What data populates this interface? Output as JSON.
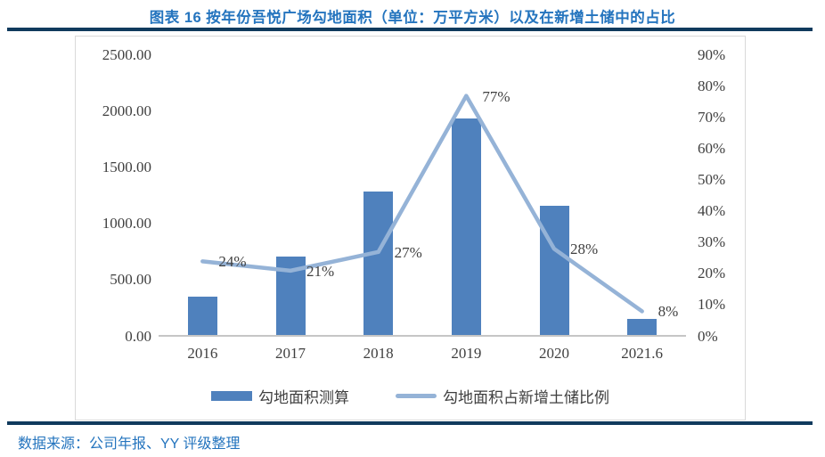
{
  "header": {
    "title": "图表 16 按年份吾悦广场勾地面积（单位：万平方米）以及在新增土储中的占比"
  },
  "footer": {
    "source": "数据来源：公司年报、YY 评级整理"
  },
  "colors": {
    "bar": "#4F81BD",
    "line": "#95B3D7",
    "title_blue": "#2474BE",
    "navy_rule": "#103A5D",
    "axis_text": "#3F3F3F",
    "axis_line": "#C6C6C6",
    "frame_border": "#D9D9D9"
  },
  "chart_data": {
    "type": "bar",
    "subtype": "combo-bar-line",
    "title": "图表 16 按年份吾悦广场勾地面积（单位：万平方米）以及在新增土储中的占比",
    "categories": [
      "2016",
      "2017",
      "2018",
      "2019",
      "2020",
      "2021.6"
    ],
    "series": [
      {
        "name": "勾地面积测算",
        "type": "bar",
        "axis": "left",
        "values": [
          350,
          710,
          1290,
          1940,
          1160,
          155
        ]
      },
      {
        "name": "勾地面积占新增土储比例",
        "type": "line",
        "axis": "right",
        "values": [
          24,
          21,
          27,
          77,
          28,
          8
        ],
        "point_labels": [
          "24%",
          "21%",
          "27%",
          "77%",
          "28%",
          "8%"
        ]
      }
    ],
    "left_axis": {
      "min": 0,
      "max": 2500,
      "ticks": [
        "2500.00",
        "2000.00",
        "1500.00",
        "1000.00",
        "500.00",
        "0.00"
      ],
      "tick_values": [
        2500,
        2000,
        1500,
        1000,
        500,
        0
      ]
    },
    "right_axis": {
      "min": 0,
      "max": 90,
      "ticks": [
        "90%",
        "80%",
        "70%",
        "60%",
        "50%",
        "40%",
        "30%",
        "20%",
        "10%",
        "0%"
      ],
      "tick_values": [
        90,
        80,
        70,
        60,
        50,
        40,
        30,
        20,
        10,
        0
      ]
    },
    "grid": false,
    "legend_position": "bottom",
    "legend": [
      "勾地面积测算",
      "勾地面积占新增土储比例"
    ]
  }
}
